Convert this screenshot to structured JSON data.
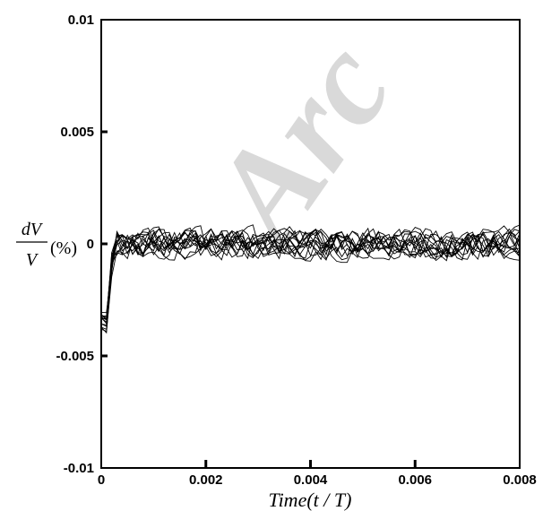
{
  "watermark": "Arc",
  "chart_data": {
    "type": "line",
    "xlabel": "Time(t / T)",
    "ylabel": {
      "numerator": "dV",
      "denominator": "V",
      "unit": "(%)"
    },
    "xlim": [
      0,
      0.008
    ],
    "ylim": [
      -0.01,
      0.01
    ],
    "x_ticks": [
      "0",
      "0.002",
      "0.004",
      "0.006",
      "0.008"
    ],
    "y_ticks": [
      "-0.01",
      "-0.005",
      "0",
      "0.005",
      "0.01"
    ],
    "series_count": 14,
    "initial_value_range": [
      -0.0039,
      -0.003
    ],
    "settle_time": 0.0004,
    "steady_state_mean": 0,
    "steady_state_band": [
      -0.0012,
      0.0013
    ],
    "grid": false,
    "legend": "none",
    "line_color": "#000000"
  }
}
